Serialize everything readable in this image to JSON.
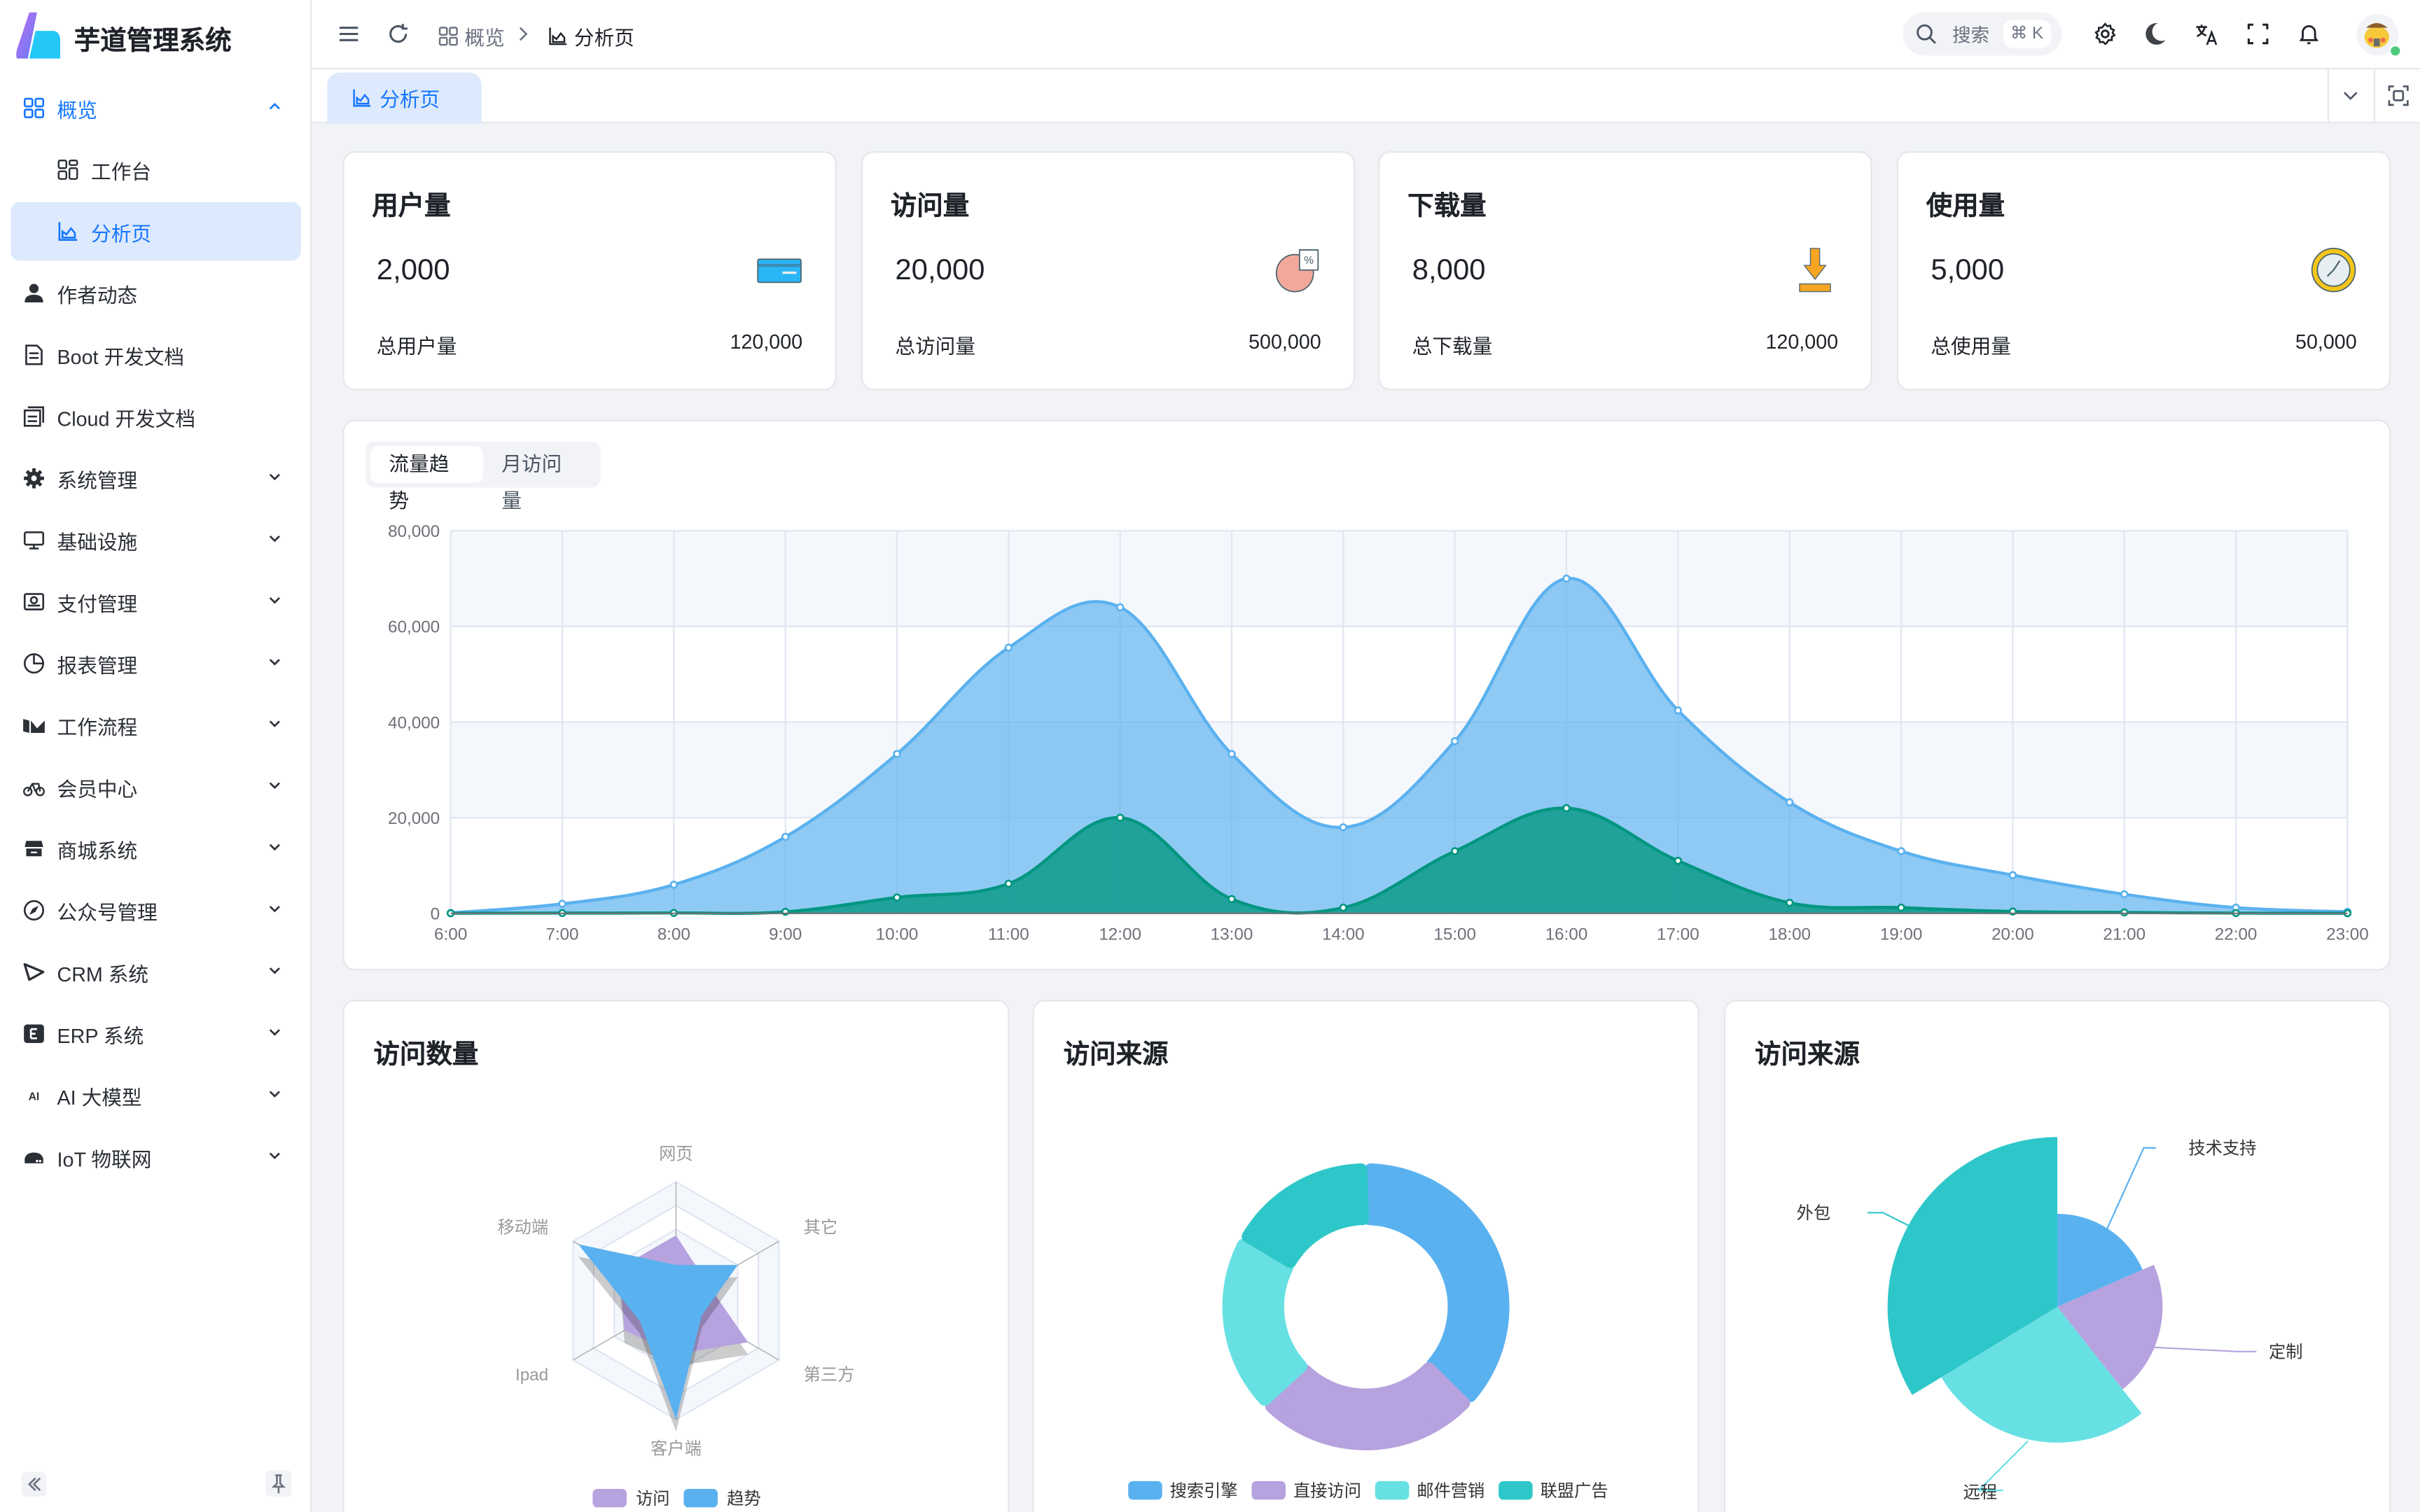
{
  "app": {
    "title": "芋道管理系统"
  },
  "sidebar": {
    "items": [
      {
        "label": "概览",
        "icon": "dashboard-icon",
        "expanded": true
      },
      {
        "label": "工作台",
        "icon": "workspace-icon",
        "sub": true
      },
      {
        "label": "分析页",
        "icon": "area-chart-icon",
        "sub": true,
        "active": true
      },
      {
        "label": "作者动态",
        "icon": "user-icon"
      },
      {
        "label": "Boot 开发文档",
        "icon": "document-icon"
      },
      {
        "label": "Cloud 开发文档",
        "icon": "documents-icon"
      },
      {
        "label": "系统管理",
        "icon": "gear-icon",
        "chevron": true
      },
      {
        "label": "基础设施",
        "icon": "monitor-icon",
        "chevron": true
      },
      {
        "label": "支付管理",
        "icon": "payment-icon",
        "chevron": true
      },
      {
        "label": "报表管理",
        "icon": "pie-chart-icon",
        "chevron": true
      },
      {
        "label": "工作流程",
        "icon": "workflow-icon",
        "chevron": true
      },
      {
        "label": "会员中心",
        "icon": "bicycle-icon",
        "chevron": true
      },
      {
        "label": "商城系统",
        "icon": "shop-icon",
        "chevron": true
      },
      {
        "label": "公众号管理",
        "icon": "compass-icon",
        "chevron": true
      },
      {
        "label": "CRM 系统",
        "icon": "crm-icon",
        "chevron": true
      },
      {
        "label": "ERP 系统",
        "icon": "erp-icon",
        "chevron": true
      },
      {
        "label": "AI 大模型",
        "icon": "ai-icon",
        "chevron": true
      },
      {
        "label": "IoT 物联网",
        "icon": "router-icon",
        "chevron": true
      }
    ]
  },
  "header": {
    "breadcrumb": [
      {
        "label": "概览",
        "icon": "dashboard-icon"
      },
      {
        "label": "分析页",
        "icon": "area-chart-icon"
      }
    ],
    "search": {
      "placeholder": "搜索",
      "shortcut": "⌘ K"
    }
  },
  "tabs": [
    {
      "label": "分析页",
      "icon": "area-chart-icon",
      "active": true
    }
  ],
  "stats": [
    {
      "title": "用户量",
      "value": "2,000",
      "footer_label": "总用户量",
      "footer_value": "120,000",
      "icon": "card-icon"
    },
    {
      "title": "访问量",
      "value": "20,000",
      "footer_label": "总访问量",
      "footer_value": "500,000",
      "icon": "percent-pie-icon"
    },
    {
      "title": "下载量",
      "value": "8,000",
      "footer_label": "总下载量",
      "footer_value": "120,000",
      "icon": "download-icon"
    },
    {
      "title": "使用量",
      "value": "5,000",
      "footer_label": "总使用量",
      "footer_value": "50,000",
      "icon": "clock-icon"
    }
  ],
  "trend_tabs": [
    {
      "label": "流量趋势",
      "active": true
    },
    {
      "label": "月访问量"
    }
  ],
  "colors": {
    "accent": "#1677ff",
    "blue": "#5ab1ef",
    "purple": "#b6a2de",
    "cyan": "#67e0e3",
    "teal": "#2ec7c9",
    "green": "#019680"
  },
  "cards": {
    "radar_title": "访问数量",
    "donut_title": "访问来源",
    "rose_title": "访问来源"
  },
  "chart_data": [
    {
      "type": "area",
      "categories": [
        "6:00",
        "7:00",
        "8:00",
        "9:00",
        "10:00",
        "11:00",
        "12:00",
        "13:00",
        "14:00",
        "15:00",
        "16:00",
        "17:00",
        "18:00",
        "19:00",
        "20:00",
        "21:00",
        "22:00",
        "23:00"
      ],
      "ylim": [
        0,
        80000
      ],
      "yticks": [
        "0",
        "20,000",
        "40,000",
        "60,000",
        "80,000"
      ],
      "grid": true,
      "smooth": true,
      "series": [
        {
          "values": [
            111,
            2000,
            6000,
            16000,
            33333,
            55555,
            64000,
            33333,
            18000,
            36000,
            70000,
            42444,
            23222,
            13000,
            8000,
            4000,
            1200,
            333
          ],
          "color": "#5ab1ef"
        },
        {
          "values": [
            33,
            66,
            88,
            333,
            3333,
            6200,
            20000,
            3000,
            1200,
            13000,
            22000,
            11000,
            2221,
            1201,
            390,
            198,
            60,
            30
          ],
          "color": "#019680"
        }
      ]
    },
    {
      "type": "radar",
      "indicators": [
        "网页",
        "移动端",
        "Ipad",
        "客户端",
        "第三方",
        "其它"
      ],
      "max": 100,
      "series": [
        {
          "name": "访问",
          "values": [
            55,
            55,
            50,
            45,
            70,
            30
          ],
          "color": "#b6a2de"
        },
        {
          "name": "趋势",
          "values": [
            30,
            95,
            35,
            100,
            25,
            60
          ],
          "color": "#5ab1ef"
        }
      ],
      "legend": "bottom"
    },
    {
      "type": "pie",
      "donut": true,
      "slices": [
        {
          "name": "搜索引擎",
          "value": 1048,
          "color": "#5ab1ef"
        },
        {
          "name": "直接访问",
          "value": 735,
          "color": "#b6a2de"
        },
        {
          "name": "邮件营销",
          "value": 580,
          "color": "#67e0e3"
        },
        {
          "name": "联盟广告",
          "value": 484,
          "color": "#2ec7c9"
        }
      ],
      "legend": "bottom"
    },
    {
      "type": "pie",
      "rose": true,
      "slices": [
        {
          "name": "技术支持",
          "value": 274,
          "color": "#5ab1ef"
        },
        {
          "name": "定制",
          "value": 310,
          "color": "#b6a2de"
        },
        {
          "name": "远程",
          "value": 400,
          "color": "#67e0e3"
        },
        {
          "name": "外包",
          "value": 500,
          "color": "#2ec7c9"
        }
      ]
    }
  ]
}
